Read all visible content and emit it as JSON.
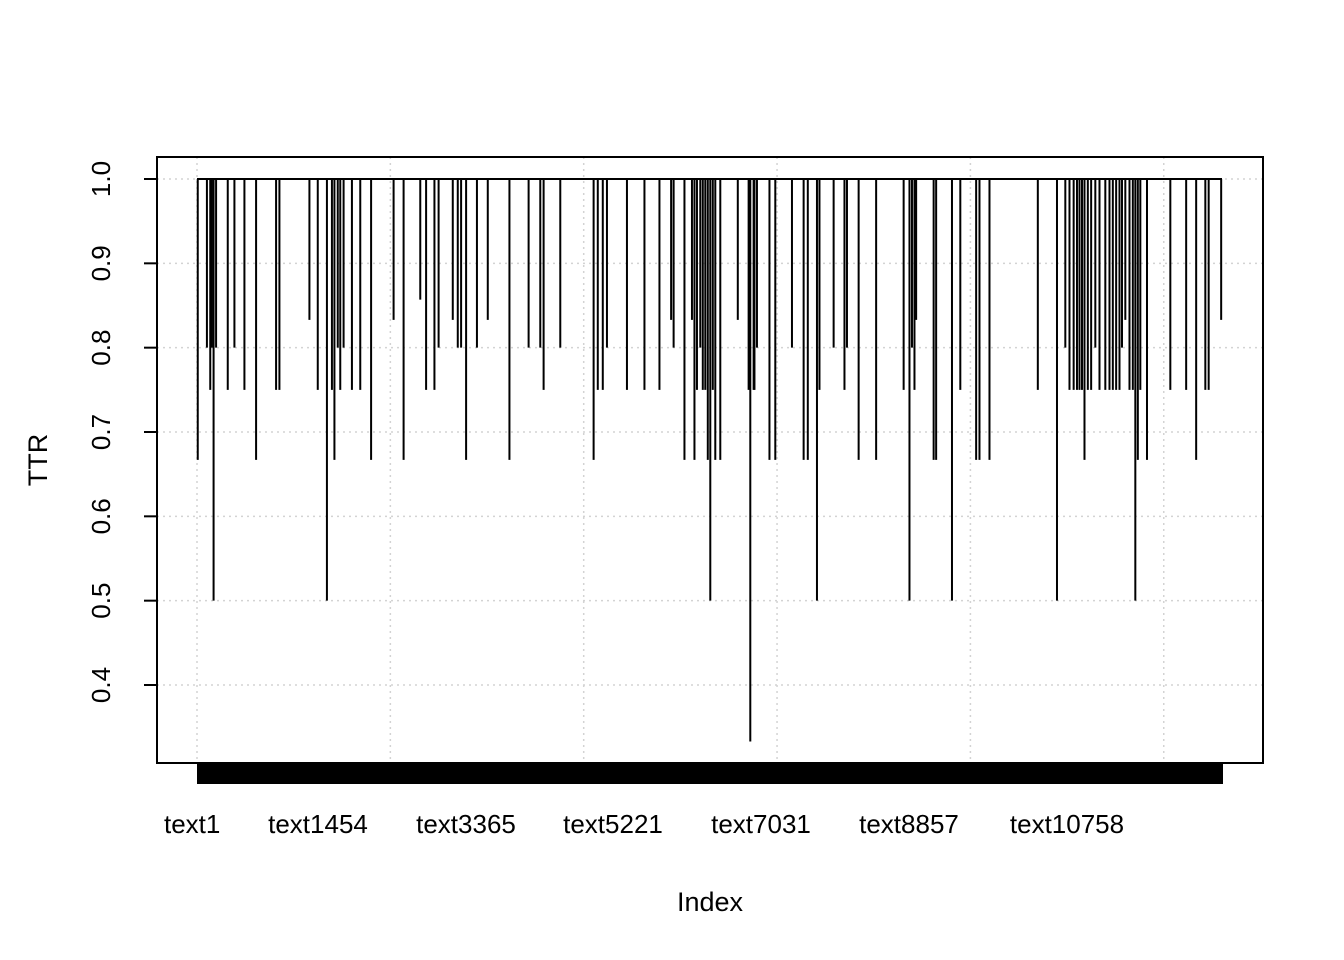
{
  "chart_data": {
    "type": "bar",
    "style": "vertical-lines (R type='h')",
    "title": "",
    "xlabel": "Index",
    "ylabel": "TTR",
    "ylim": [
      0.3,
      1.03
    ],
    "yticks": [
      "0.4",
      "0.5",
      "0.6",
      "0.7",
      "0.8",
      "0.9",
      "1.0"
    ],
    "xlim": [
      1,
      12300
    ],
    "x_tick_labels": [
      {
        "x": 1,
        "label": "text1"
      },
      {
        "x": 1454,
        "label": "text1454"
      },
      {
        "x": 3365,
        "label": "text3365"
      },
      {
        "x": 5221,
        "label": "text5221"
      },
      {
        "x": 7031,
        "label": "text7031"
      },
      {
        "x": 8857,
        "label": "text8857"
      },
      {
        "x": 10758,
        "label": "text10758"
      }
    ],
    "grid": true,
    "grid_x_positions": [
      1,
      2321,
      4641,
      6961,
      9281,
      11601
    ],
    "baseline": 1.0,
    "note_default_value": 1.0,
    "points": [
      [
        10,
        0.667
      ],
      [
        120,
        0.8
      ],
      [
        160,
        0.75
      ],
      [
        180,
        0.8
      ],
      [
        200,
        0.5
      ],
      [
        230,
        0.8
      ],
      [
        370,
        0.75
      ],
      [
        450,
        0.8
      ],
      [
        570,
        0.75
      ],
      [
        710,
        0.667
      ],
      [
        950,
        0.75
      ],
      [
        990,
        0.75
      ],
      [
        1350,
        0.833
      ],
      [
        1450,
        0.75
      ],
      [
        1560,
        0.5
      ],
      [
        1620,
        0.75
      ],
      [
        1650,
        0.667
      ],
      [
        1690,
        0.8
      ],
      [
        1720,
        0.75
      ],
      [
        1760,
        0.8
      ],
      [
        1860,
        0.75
      ],
      [
        1960,
        0.75
      ],
      [
        2090,
        0.667
      ],
      [
        2360,
        0.833
      ],
      [
        2480,
        0.667
      ],
      [
        2680,
        0.857
      ],
      [
        2750,
        0.75
      ],
      [
        2850,
        0.75
      ],
      [
        2900,
        0.8
      ],
      [
        3070,
        0.833
      ],
      [
        3130,
        0.8
      ],
      [
        3170,
        0.8
      ],
      [
        3230,
        0.667
      ],
      [
        3360,
        0.8
      ],
      [
        3490,
        0.833
      ],
      [
        3750,
        0.667
      ],
      [
        3980,
        0.8
      ],
      [
        4120,
        0.8
      ],
      [
        4160,
        0.75
      ],
      [
        4360,
        0.8
      ],
      [
        4760,
        0.667
      ],
      [
        4810,
        0.75
      ],
      [
        4870,
        0.75
      ],
      [
        4920,
        0.8
      ],
      [
        5160,
        0.75
      ],
      [
        5370,
        0.75
      ],
      [
        5550,
        0.75
      ],
      [
        5690,
        0.833
      ],
      [
        5720,
        0.8
      ],
      [
        5850,
        0.667
      ],
      [
        5940,
        0.833
      ],
      [
        5970,
        0.667
      ],
      [
        6000,
        0.75
      ],
      [
        6040,
        0.8
      ],
      [
        6070,
        0.75
      ],
      [
        6100,
        0.75
      ],
      [
        6130,
        0.667
      ],
      [
        6160,
        0.5
      ],
      [
        6190,
        0.75
      ],
      [
        6220,
        0.667
      ],
      [
        6280,
        0.667
      ],
      [
        6490,
        0.833
      ],
      [
        6620,
        0.75
      ],
      [
        6640,
        0.333
      ],
      [
        6680,
        0.75
      ],
      [
        6690,
        0.75
      ],
      [
        6720,
        0.8
      ],
      [
        6870,
        0.667
      ],
      [
        6940,
        0.667
      ],
      [
        7140,
        0.8
      ],
      [
        7280,
        0.667
      ],
      [
        7330,
        0.667
      ],
      [
        7440,
        0.5
      ],
      [
        7470,
        0.75
      ],
      [
        7640,
        0.8
      ],
      [
        7770,
        0.75
      ],
      [
        7800,
        0.8
      ],
      [
        7940,
        0.667
      ],
      [
        8150,
        0.667
      ],
      [
        8480,
        0.75
      ],
      [
        8550,
        0.5
      ],
      [
        8580,
        0.8
      ],
      [
        8610,
        0.75
      ],
      [
        8630,
        0.833
      ],
      [
        8840,
        0.667
      ],
      [
        8870,
        0.667
      ],
      [
        9060,
        0.5
      ],
      [
        9160,
        0.75
      ],
      [
        9350,
        0.667
      ],
      [
        9390,
        0.667
      ],
      [
        9510,
        0.667
      ],
      [
        10090,
        0.75
      ],
      [
        10320,
        0.5
      ],
      [
        10420,
        0.8
      ],
      [
        10470,
        0.75
      ],
      [
        10520,
        0.75
      ],
      [
        10560,
        0.75
      ],
      [
        10590,
        0.75
      ],
      [
        10620,
        0.75
      ],
      [
        10650,
        0.667
      ],
      [
        10690,
        0.75
      ],
      [
        10730,
        0.75
      ],
      [
        10780,
        0.8
      ],
      [
        10830,
        0.75
      ],
      [
        10900,
        0.75
      ],
      [
        10950,
        0.75
      ],
      [
        10990,
        0.75
      ],
      [
        11030,
        0.75
      ],
      [
        11070,
        0.75
      ],
      [
        11100,
        0.8
      ],
      [
        11140,
        0.833
      ],
      [
        11190,
        0.75
      ],
      [
        11230,
        0.75
      ],
      [
        11260,
        0.5
      ],
      [
        11290,
        0.667
      ],
      [
        11320,
        0.75
      ],
      [
        11400,
        0.667
      ],
      [
        11680,
        0.75
      ],
      [
        11870,
        0.75
      ],
      [
        11990,
        0.667
      ],
      [
        12100,
        0.75
      ],
      [
        12140,
        0.75
      ],
      [
        12290,
        0.833
      ]
    ]
  }
}
